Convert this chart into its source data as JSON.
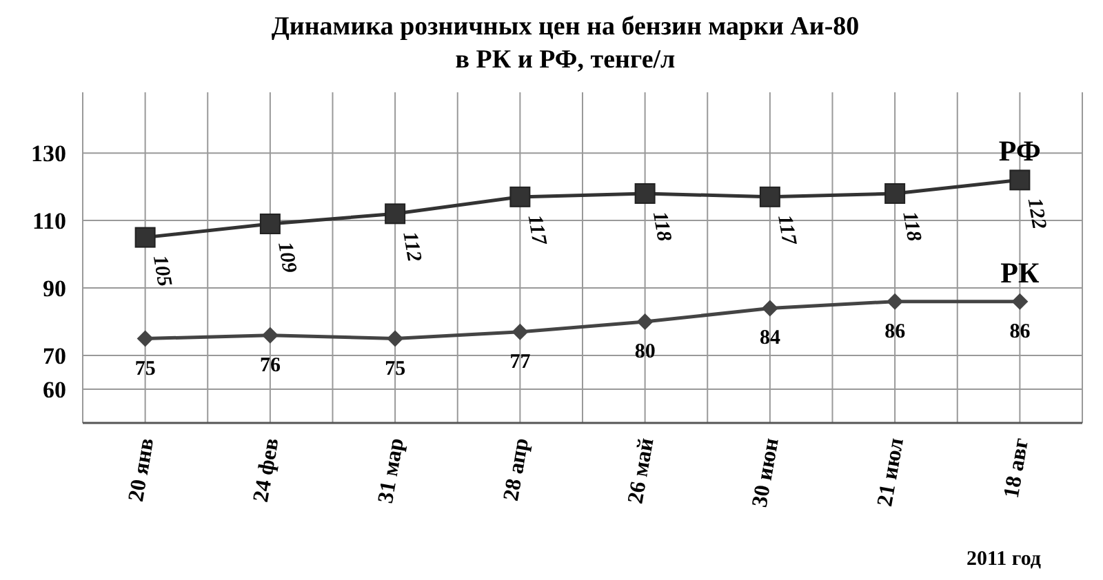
{
  "chart_data": {
    "type": "line",
    "title": "Динамика розничных цен на бензин  марки Аи-80\nв РК и РФ, тенге/л",
    "categories": [
      "20 янв",
      "24 фев",
      "31 мар",
      "28 апр",
      "26 май",
      "30 июн",
      "21 июл",
      "18 авг"
    ],
    "series": [
      {
        "name": "РФ",
        "color": "#333333",
        "marker": "square",
        "values": [
          105,
          109,
          112,
          117,
          118,
          117,
          118,
          122
        ]
      },
      {
        "name": "РК",
        "color": "#444444",
        "marker": "diamond",
        "values": [
          75,
          76,
          75,
          77,
          80,
          84,
          86,
          86
        ]
      }
    ],
    "ylim": [
      50,
      148
    ],
    "yticks": [
      60,
      70,
      90,
      110,
      130
    ],
    "grid": true,
    "legend": false,
    "data_labels": true,
    "line_style": "solid",
    "annotations": [
      "2011 год"
    ]
  }
}
